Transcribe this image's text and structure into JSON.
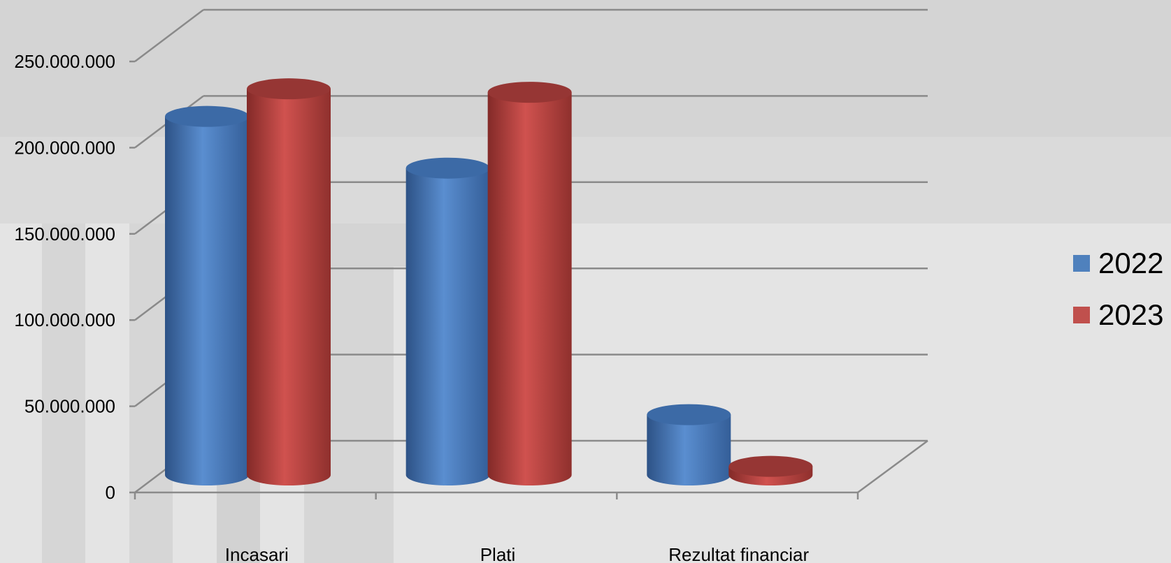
{
  "chart_data": {
    "type": "bar",
    "style": "3d-cylinder",
    "categories": [
      "Incasari",
      "Plati",
      "Rezultat financiar"
    ],
    "series": [
      {
        "name": "2022",
        "color": "#4f81bd",
        "values": [
          208000000,
          178000000,
          35000000
        ]
      },
      {
        "name": "2023",
        "color": "#c0504d",
        "values": [
          224000000,
          222000000,
          5000000
        ]
      }
    ],
    "y_ticks": [
      "0",
      "50.000.000",
      "100.000.000",
      "150.000.000",
      "200.000.000",
      "250.000.000"
    ],
    "ylim": [
      0,
      250000000
    ],
    "grid": true,
    "legend_position": "right"
  }
}
